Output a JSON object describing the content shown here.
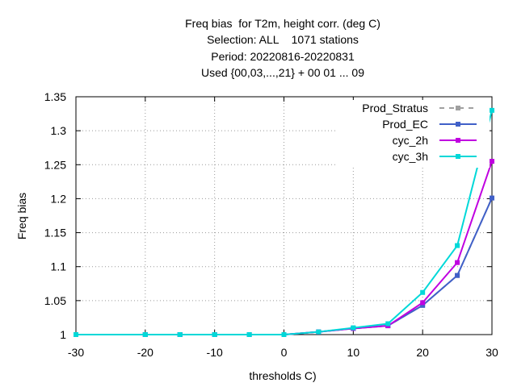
{
  "chart_data": {
    "type": "line",
    "title": [
      "Freq bias  for T2m, height corr. (deg C)",
      "Selection: ALL    1071 stations",
      "Period: 20220816-20220831",
      "Used {00,03,...,21} + 00 01 ... 09"
    ],
    "xlabel": "thresholds C)",
    "ylabel": "Freq bias",
    "x": [
      -30,
      -20,
      -15,
      -10,
      -5,
      0,
      5,
      10,
      15,
      20,
      25,
      30
    ],
    "series": [
      {
        "name": "Prod_Stratus",
        "color": "#a0a0a0",
        "dashed": true,
        "values": [
          1,
          1,
          1,
          1,
          1,
          1,
          1.004,
          1.009,
          1.013,
          1.043,
          1.087,
          1.201
        ]
      },
      {
        "name": "Prod_EC",
        "color": "#4060c8",
        "values": [
          1,
          1,
          1,
          1,
          1,
          1,
          1.004,
          1.009,
          1.013,
          1.043,
          1.087,
          1.201
        ]
      },
      {
        "name": "cyc_2h",
        "color": "#c000e0",
        "values": [
          1,
          1,
          1,
          1,
          1,
          1,
          1.004,
          1.009,
          1.013,
          1.047,
          1.106,
          1.255
        ]
      },
      {
        "name": "cyc_3h",
        "color": "#00d8d8",
        "values": [
          1,
          1,
          1,
          1,
          1,
          1,
          1.004,
          1.01,
          1.016,
          1.062,
          1.131,
          1.33
        ]
      }
    ],
    "xlim": [
      -30,
      30
    ],
    "xticks": [
      -30,
      -20,
      -10,
      0,
      10,
      20,
      30
    ],
    "ylim": [
      1,
      1.35
    ],
    "yticks": [
      1,
      1.05,
      1.1,
      1.15,
      1.2,
      1.25,
      1.3,
      1.35
    ],
    "grid": true,
    "legend": "top-right"
  }
}
